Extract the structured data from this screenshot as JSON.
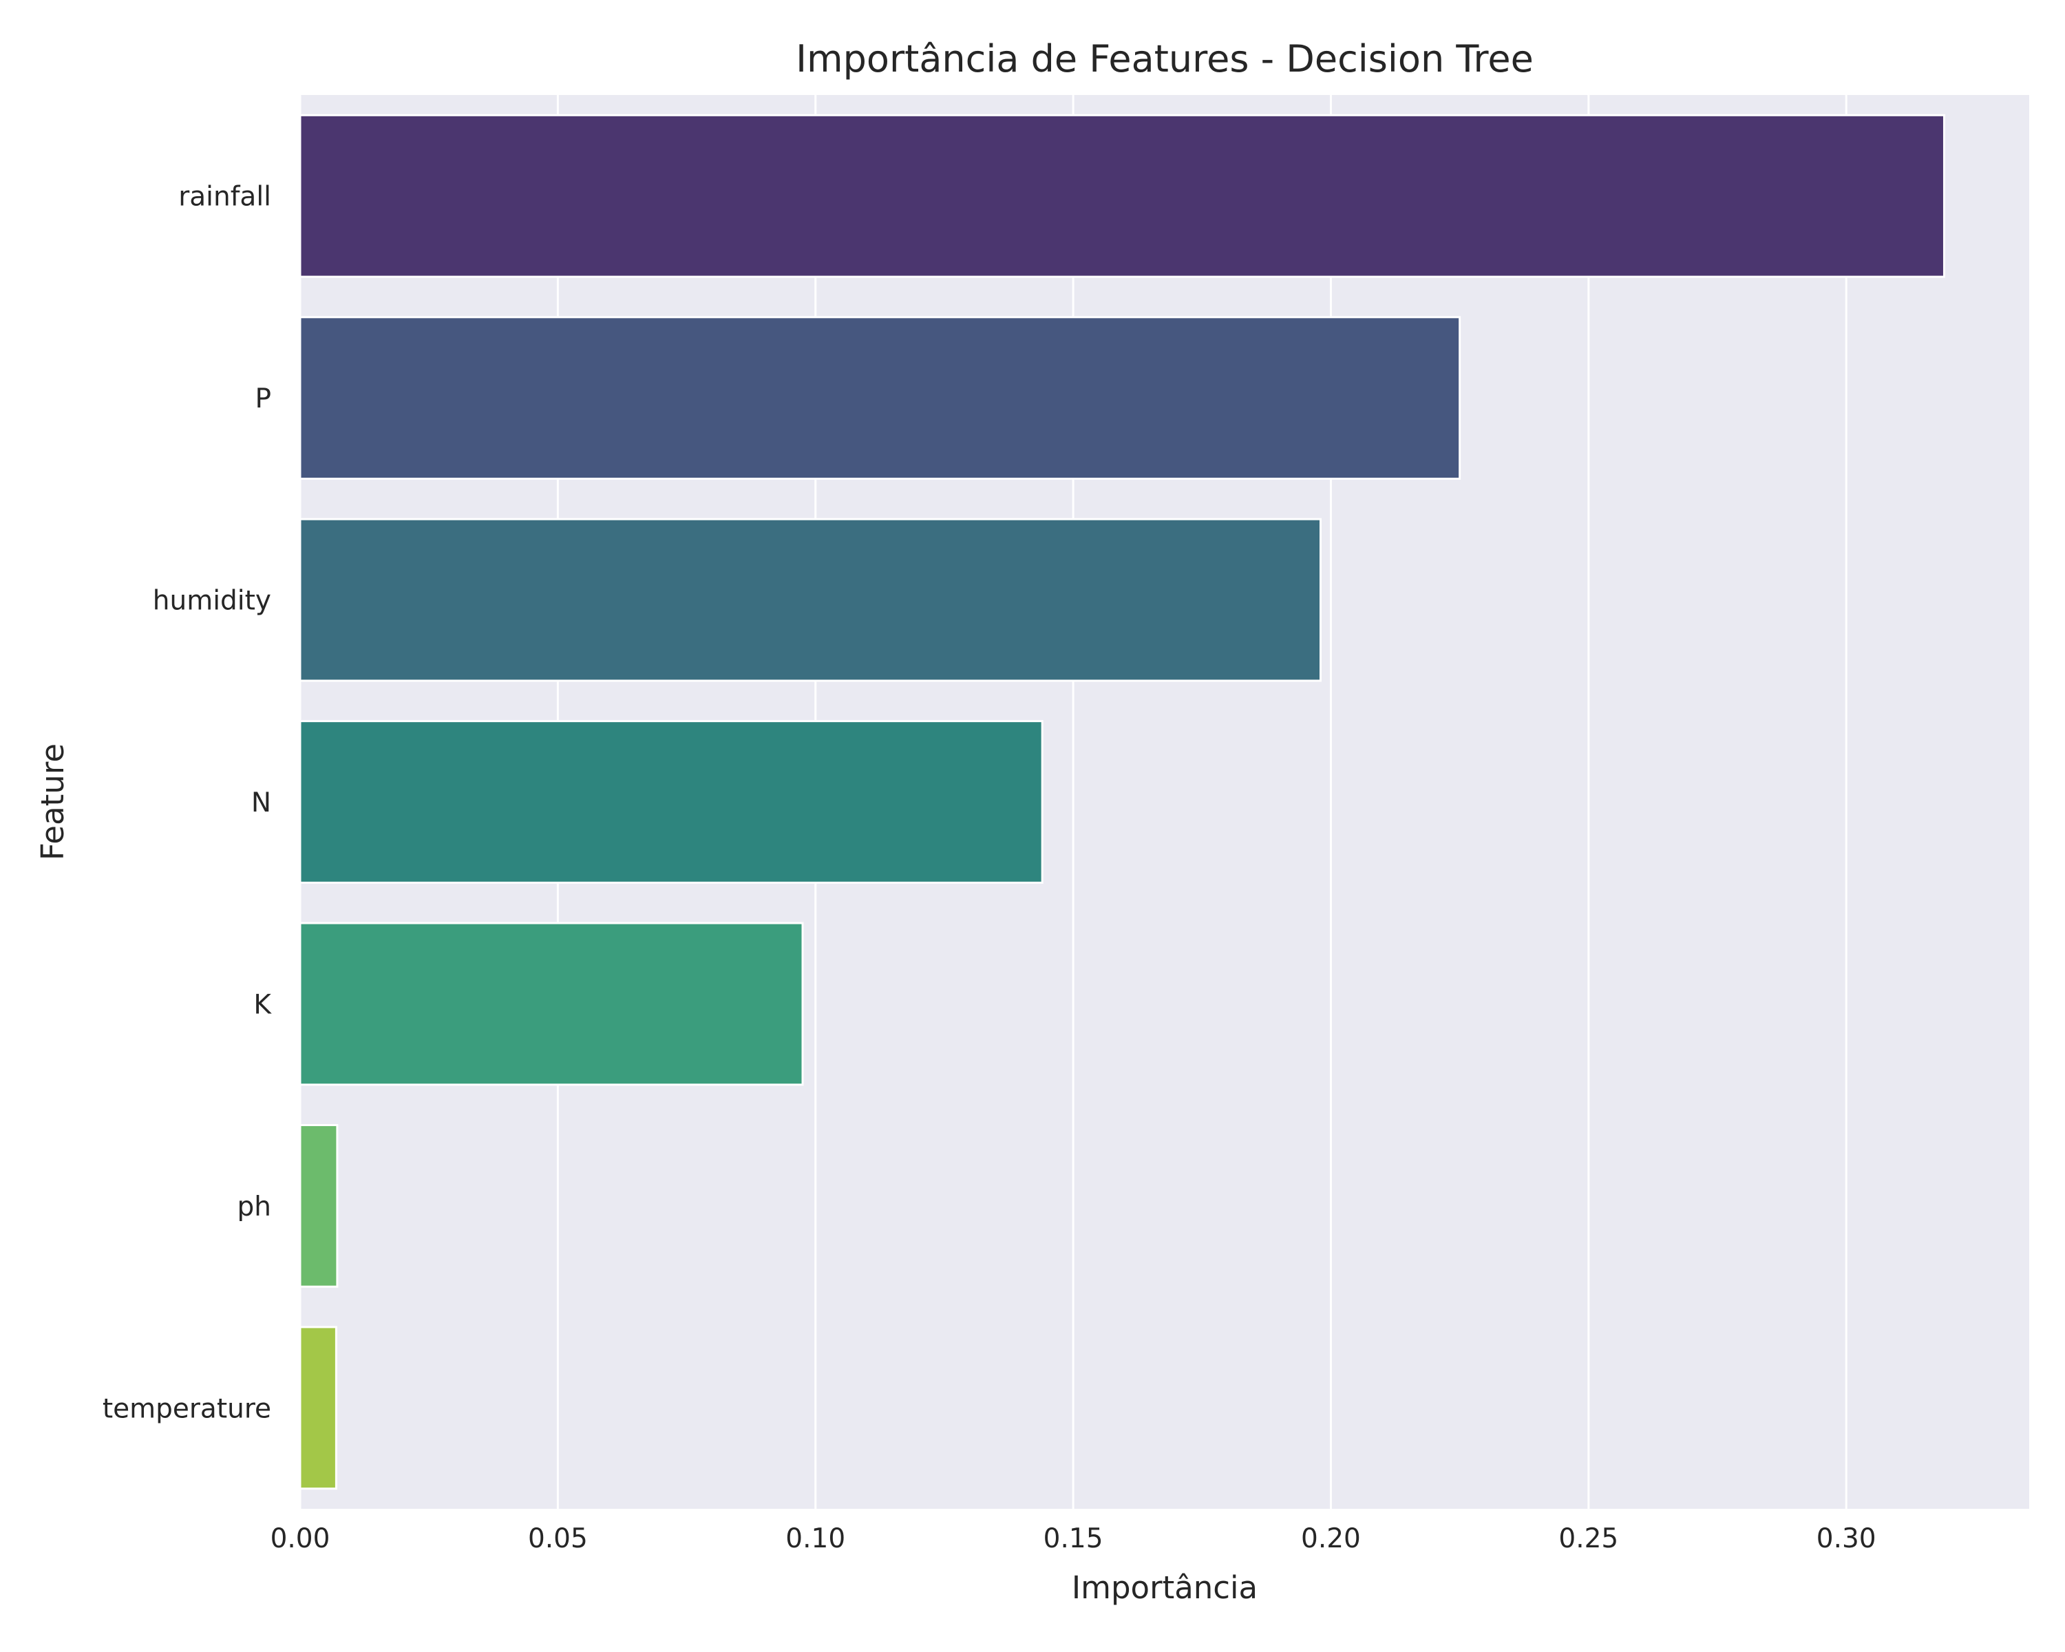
{
  "chart_data": {
    "type": "bar",
    "orientation": "horizontal",
    "title": "Importância de Features - Decision Tree",
    "xlabel": "Importância",
    "ylabel": "Feature",
    "categories": [
      "rainfall",
      "P",
      "humidity",
      "N",
      "K",
      "ph",
      "temperature"
    ],
    "values": [
      0.319,
      0.225,
      0.198,
      0.144,
      0.0975,
      0.0072,
      0.007
    ],
    "colors": [
      "#4b366f",
      "#46577f",
      "#3b6e80",
      "#2e857e",
      "#3b9d7d",
      "#6cbb6c",
      "#a3c748"
    ],
    "xlim": [
      0,
      0.3355
    ],
    "xticks": [
      "0.00",
      "0.05",
      "0.10",
      "0.15",
      "0.20",
      "0.25",
      "0.30"
    ],
    "xtick_values": [
      0,
      0.05,
      0.1,
      0.15,
      0.2,
      0.25,
      0.3
    ],
    "grid": true,
    "background": "#eaeaf2"
  }
}
